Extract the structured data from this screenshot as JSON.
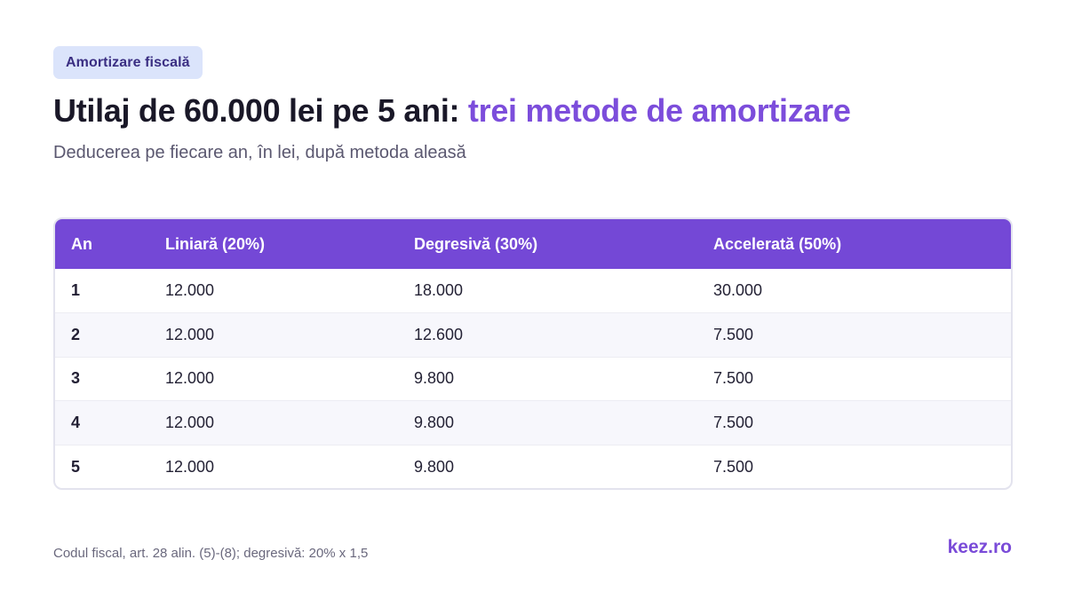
{
  "badge": "Amortizare fiscală",
  "title": {
    "main": "Utilaj de 60.000 lei pe 5 ani: ",
    "accent": "trei metode de amortizare"
  },
  "subtitle": "Deducerea pe fiecare an, în lei, după metoda aleasă",
  "table": {
    "headers": [
      "An",
      "Liniară (20%)",
      "Degresivă (30%)",
      "Accelerată (50%)"
    ],
    "rows": [
      [
        "1",
        "12.000",
        "18.000",
        "30.000"
      ],
      [
        "2",
        "12.000",
        "12.600",
        "7.500"
      ],
      [
        "3",
        "12.000",
        "9.800",
        "7.500"
      ],
      [
        "4",
        "12.000",
        "9.800",
        "7.500"
      ],
      [
        "5",
        "12.000",
        "9.800",
        "7.500"
      ]
    ]
  },
  "footnote": "Codul fiscal, art. 28 alin. (5)-(8); degresivă: 20% x 1,5",
  "brand": "keez.ro",
  "colors": {
    "accent": "#7c4ddb",
    "header_bg": "#7448d6",
    "badge_bg": "#dbe4fb"
  }
}
